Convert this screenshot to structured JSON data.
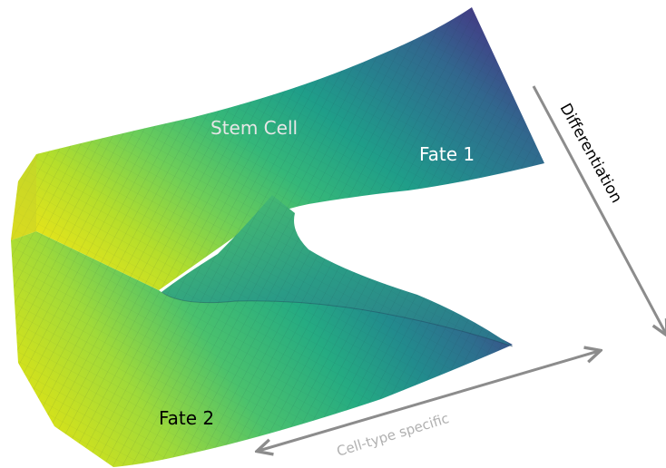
{
  "labels": {
    "stem_cell": "Stem Cell",
    "fate_1": "Fate 1",
    "fate_2": "Fate 2",
    "differentiation": "Differentiation",
    "cell_type_specific": "Cell-type specific"
  },
  "colors": {
    "viridis_purple": "#440154",
    "viridis_blue": "#3b528b",
    "viridis_teal": "#21918c",
    "viridis_green": "#5ec962",
    "viridis_yellow": "#fde725",
    "arrow_gray": "#8c8c8c",
    "label_light": "#e6e6e6",
    "label_dark": "#000000",
    "label_white": "#ffffff"
  }
}
